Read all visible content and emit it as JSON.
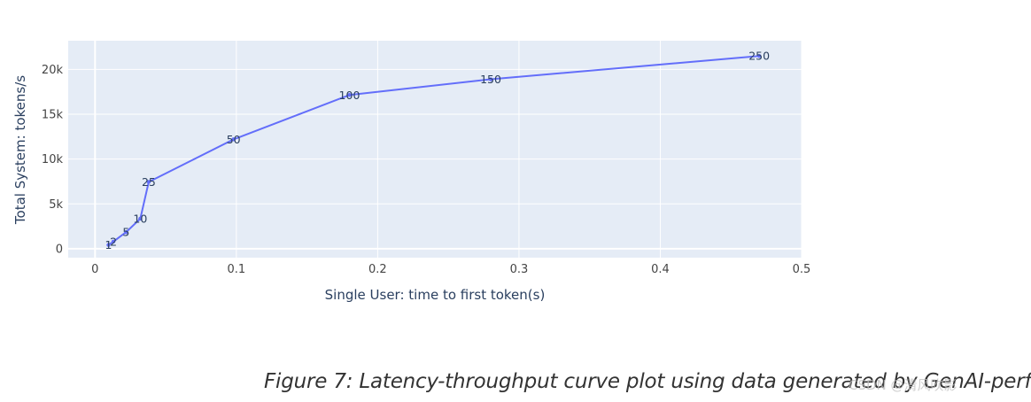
{
  "chart_data": {
    "type": "line",
    "title": "",
    "xlabel": "Single User: time to first token(s)",
    "ylabel": "Total System: tokens/s",
    "xlim": [
      -0.019,
      0.5
    ],
    "ylim": [
      -1000,
      23200
    ],
    "x_ticks": [
      0,
      0.1,
      0.2,
      0.3,
      0.4,
      0.5
    ],
    "x_tick_labels": [
      "0",
      "0.1",
      "0.2",
      "0.3",
      "0.4",
      "0.5"
    ],
    "y_ticks": [
      0,
      5000,
      10000,
      15000,
      20000
    ],
    "y_tick_labels": [
      "0",
      "5k",
      "10k",
      "15k",
      "20k"
    ],
    "grid": true,
    "line_color": "#636efa",
    "plot_bg": "#e5ecf6",
    "series": [
      {
        "points": [
          {
            "x": 0.0095,
            "y": 420,
            "label": "1"
          },
          {
            "x": 0.013,
            "y": 800,
            "label": "2"
          },
          {
            "x": 0.022,
            "y": 1850,
            "label": "5"
          },
          {
            "x": 0.032,
            "y": 3350,
            "label": "10"
          },
          {
            "x": 0.038,
            "y": 7450,
            "label": "25"
          },
          {
            "x": 0.098,
            "y": 12200,
            "label": "50"
          },
          {
            "x": 0.18,
            "y": 17150,
            "label": "100"
          },
          {
            "x": 0.28,
            "y": 18900,
            "label": "150"
          },
          {
            "x": 0.47,
            "y": 21500,
            "label": "250"
          }
        ]
      }
    ]
  },
  "caption": "Figure 7: Latency-throughput curve plot using data generated by GenAI-perf",
  "watermark": "CSDN @清风吹影"
}
